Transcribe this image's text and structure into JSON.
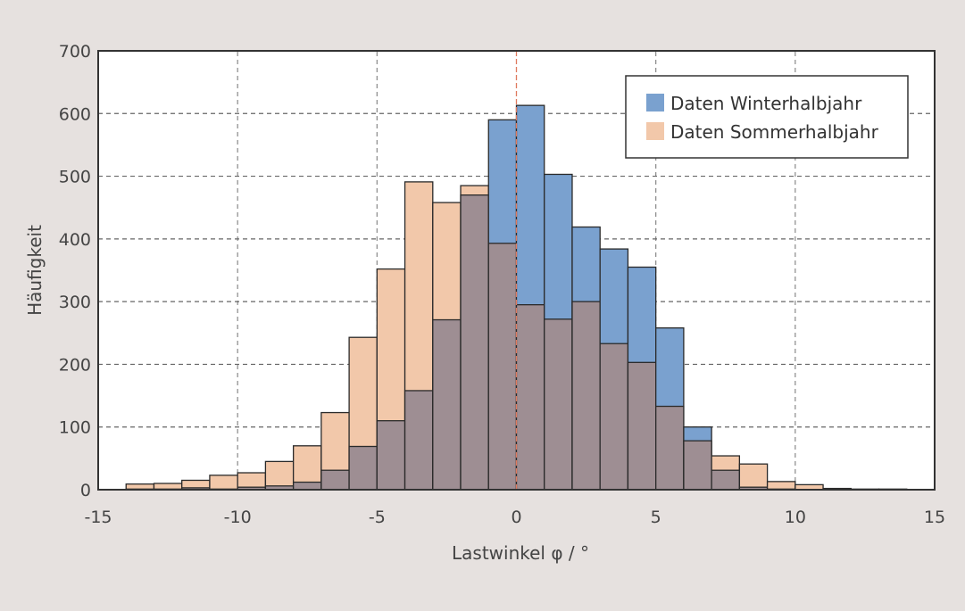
{
  "chart_data": {
    "type": "bar",
    "subtype": "overlapping-histogram",
    "title": "",
    "xlabel": "Lastwinkel φ / °",
    "ylabel": "Häufigkeit",
    "xlim": [
      -15,
      15
    ],
    "ylim": [
      0,
      700
    ],
    "xticks": [
      -15,
      -10,
      -5,
      0,
      5,
      10,
      15
    ],
    "yticks": [
      0,
      100,
      200,
      300,
      400,
      500,
      600,
      700
    ],
    "grid": true,
    "legend_position": "upper right",
    "bin_width": 1,
    "bin_left_edges": [
      -14,
      -13,
      -12,
      -11,
      -10,
      -9,
      -8,
      -7,
      -6,
      -5,
      -4,
      -3,
      -2,
      -1,
      0,
      1,
      2,
      3,
      4,
      5,
      6,
      7,
      8,
      9,
      10,
      11,
      12,
      13
    ],
    "series": [
      {
        "name": "Daten Winterhalbjahr",
        "color": "#7aa1cf",
        "values": [
          1,
          1,
          3,
          1,
          4,
          6,
          12,
          31,
          69,
          110,
          158,
          271,
          470,
          590,
          613,
          503,
          419,
          384,
          355,
          258,
          100,
          31,
          4,
          1,
          0,
          0,
          0,
          0
        ]
      },
      {
        "name": "Daten Sommerhalbjahr",
        "color": "#f2c8aa",
        "values": [
          9,
          10,
          15,
          23,
          27,
          45,
          70,
          123,
          243,
          352,
          491,
          458,
          485,
          393,
          295,
          272,
          300,
          233,
          203,
          133,
          78,
          54,
          41,
          13,
          8,
          2,
          1,
          1
        ]
      }
    ],
    "overlap_color": "#9e8e93",
    "annotations": [
      {
        "type": "vertical-line",
        "x": 0,
        "color": "#e07a5f",
        "style": "dashed"
      }
    ]
  },
  "legend": {
    "items": [
      {
        "label": "Daten Winterhalbjahr",
        "color": "#7aa1cf"
      },
      {
        "label": "Daten Sommerhalbjahr",
        "color": "#f2c8aa"
      }
    ]
  },
  "axes": {
    "xlabel": "Lastwinkel φ / °",
    "ylabel": "Häufigkeit"
  }
}
